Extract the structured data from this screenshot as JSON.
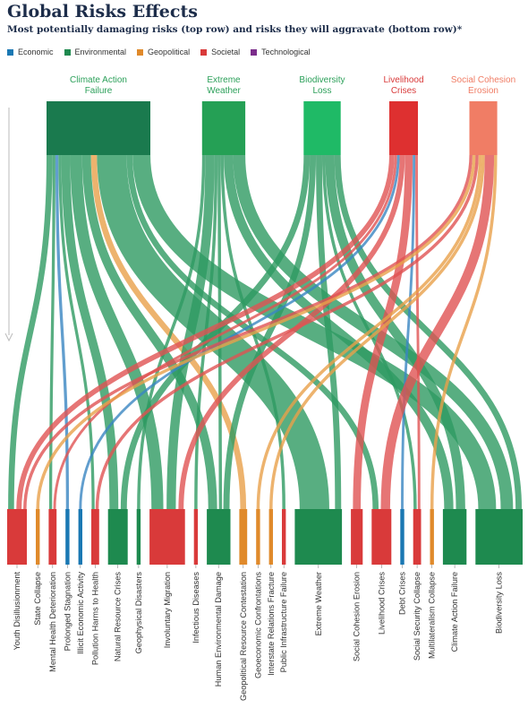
{
  "title": "Global Risks Effects",
  "subtitle": "Most potentially damaging risks (top row) and risks they will aggravate (bottom row)*",
  "legend": [
    {
      "name": "Economic",
      "color": "#1a78b3"
    },
    {
      "name": "Environmental",
      "color": "#1e8a4f"
    },
    {
      "name": "Geopolitical",
      "color": "#e08a2b"
    },
    {
      "name": "Societal",
      "color": "#d93a3a"
    },
    {
      "name": "Technological",
      "color": "#7b2d8b"
    }
  ],
  "chart_data": {
    "type": "sankey",
    "sources": [
      {
        "name": "Climate Action Failure",
        "lines": [
          "Climate Action",
          "Failure"
        ],
        "category": "Environmental",
        "color": "#1a7a4e",
        "label_color": "#2ca05a"
      },
      {
        "name": "Extreme Weather",
        "lines": [
          "Extreme",
          "Weather"
        ],
        "category": "Environmental",
        "color": "#25a055",
        "label_color": "#2ca05a"
      },
      {
        "name": "Biodiversity Loss",
        "lines": [
          "Biodiversity",
          "Loss"
        ],
        "category": "Environmental",
        "color": "#1fba66",
        "label_color": "#2ca05a"
      },
      {
        "name": "Livelihood Crises",
        "lines": [
          "Livelihood",
          "Crises"
        ],
        "category": "Societal",
        "color": "#de3030",
        "label_color": "#d93a3a"
      },
      {
        "name": "Social Cohesion Erosion",
        "lines": [
          "Social Cohesion",
          "Erosion"
        ],
        "category": "Societal",
        "color": "#f07d65",
        "label_color": "#f07d65"
      }
    ],
    "targets": [
      {
        "name": "Youth Disillusionment",
        "category": "Societal"
      },
      {
        "name": "State Collapse",
        "category": "Geopolitical"
      },
      {
        "name": "Mental Health Deterioration",
        "category": "Societal"
      },
      {
        "name": "Prolonged Stagnation",
        "category": "Economic"
      },
      {
        "name": "Illicit Economic Activity",
        "category": "Economic"
      },
      {
        "name": "Pollution Harms to Health",
        "category": "Societal"
      },
      {
        "name": "Natural Resource Crises",
        "category": "Environmental"
      },
      {
        "name": "Geophysical Disasters",
        "category": "Environmental"
      },
      {
        "name": "Involuntary Migration",
        "category": "Societal"
      },
      {
        "name": "Infectious Diseases",
        "category": "Societal"
      },
      {
        "name": "Human Environmental Damage",
        "category": "Environmental"
      },
      {
        "name": "Geopolitical Resource Contestation",
        "category": "Geopolitical"
      },
      {
        "name": "Geoeconomic Confrontations",
        "category": "Geopolitical"
      },
      {
        "name": "Interstate Relations Fracture",
        "category": "Geopolitical"
      },
      {
        "name": "Public Infrastructure Failure",
        "category": "Societal"
      },
      {
        "name": "Extreme Weather",
        "category": "Environmental"
      },
      {
        "name": "Social Cohesion Erosion",
        "category": "Societal"
      },
      {
        "name": "Livelihood Crises",
        "category": "Societal"
      },
      {
        "name": "Debt Crises",
        "category": "Economic"
      },
      {
        "name": "Social Security Collapse",
        "category": "Societal"
      },
      {
        "name": "Multilateralism Collapse",
        "category": "Geopolitical"
      },
      {
        "name": "Climate Action Failure",
        "category": "Environmental"
      },
      {
        "name": "Biodiversity Loss",
        "category": "Environmental"
      }
    ],
    "links": [
      {
        "source": "Climate Action Failure",
        "target": "Youth Disillusionment",
        "value": 2
      },
      {
        "source": "Climate Action Failure",
        "target": "Mental Health Deterioration",
        "value": 1
      },
      {
        "source": "Climate Action Failure",
        "target": "Prolonged Stagnation",
        "value": 1
      },
      {
        "source": "Climate Action Failure",
        "target": "Pollution Harms to Health",
        "value": 1
      },
      {
        "source": "Climate Action Failure",
        "target": "Natural Resource Crises",
        "value": 3
      },
      {
        "source": "Climate Action Failure",
        "target": "Involuntary Migration",
        "value": 4
      },
      {
        "source": "Climate Action Failure",
        "target": "Human Environmental Damage",
        "value": 3
      },
      {
        "source": "Climate Action Failure",
        "target": "Geopolitical Resource Contestation",
        "value": 2
      },
      {
        "source": "Climate Action Failure",
        "target": "Extreme Weather",
        "value": 10
      },
      {
        "source": "Climate Action Failure",
        "target": "Biodiversity Loss",
        "value": 6
      },
      {
        "source": "Climate Action Failure",
        "target": "Livelihood Crises",
        "value": 2
      },
      {
        "source": "Extreme Weather",
        "target": "Geophysical Disasters",
        "value": 1
      },
      {
        "source": "Extreme Weather",
        "target": "Involuntary Migration",
        "value": 3
      },
      {
        "source": "Extreme Weather",
        "target": "Infectious Diseases",
        "value": 1
      },
      {
        "source": "Extreme Weather",
        "target": "Human Environmental Damage",
        "value": 1
      },
      {
        "source": "Extreme Weather",
        "target": "Public Infrastructure Failure",
        "value": 1
      },
      {
        "source": "Extreme Weather",
        "target": "Climate Action Failure",
        "value": 3
      },
      {
        "source": "Extreme Weather",
        "target": "Biodiversity Loss",
        "value": 4
      },
      {
        "source": "Biodiversity Loss",
        "target": "Natural Resource Crises",
        "value": 2
      },
      {
        "source": "Biodiversity Loss",
        "target": "Human Environmental Damage",
        "value": 2
      },
      {
        "source": "Biodiversity Loss",
        "target": "Extreme Weather",
        "value": 2
      },
      {
        "source": "Biodiversity Loss",
        "target": "Climate Action Failure",
        "value": 3
      },
      {
        "source": "Biodiversity Loss",
        "target": "Biodiversity Loss",
        "value": 2
      },
      {
        "source": "Biodiversity Loss",
        "target": "Social Security Collapse",
        "value": 1
      },
      {
        "source": "Livelihood Crises",
        "target": "Youth Disillusionment",
        "value": 2
      },
      {
        "source": "Livelihood Crises",
        "target": "Mental Health Deterioration",
        "value": 1
      },
      {
        "source": "Livelihood Crises",
        "target": "Illicit Economic Activity",
        "value": 1
      },
      {
        "source": "Livelihood Crises",
        "target": "Involuntary Migration",
        "value": 2
      },
      {
        "source": "Livelihood Crises",
        "target": "Social Cohesion Erosion",
        "value": 3
      },
      {
        "source": "Livelihood Crises",
        "target": "Debt Crises",
        "value": 1
      },
      {
        "source": "Livelihood Crises",
        "target": "Social Security Collapse",
        "value": 1
      },
      {
        "source": "Social Cohesion Erosion",
        "target": "Youth Disillusionment",
        "value": 1
      },
      {
        "source": "Social Cohesion Erosion",
        "target": "State Collapse",
        "value": 1
      },
      {
        "source": "Social Cohesion Erosion",
        "target": "Geoeconomic Confrontations",
        "value": 1
      },
      {
        "source": "Social Cohesion Erosion",
        "target": "Interstate Relations Fracture",
        "value": 1
      },
      {
        "source": "Social Cohesion Erosion",
        "target": "Livelihood Crises",
        "value": 3
      },
      {
        "source": "Social Cohesion Erosion",
        "target": "Multilateralism Collapse",
        "value": 1
      },
      {
        "source": "Social Cohesion Erosion",
        "target": "Pollution Harms to Health",
        "value": 1
      }
    ]
  }
}
